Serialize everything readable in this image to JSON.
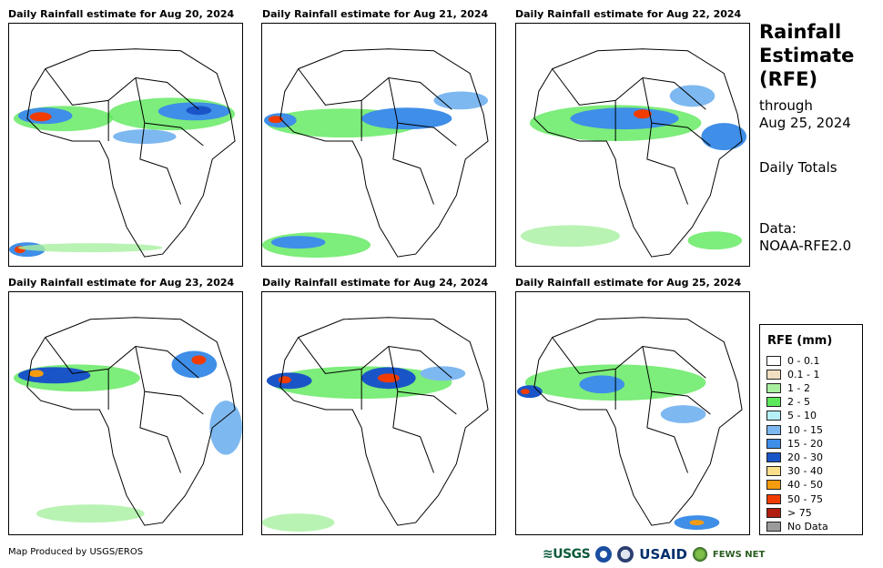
{
  "panels": [
    {
      "title": "Daily Rainfall estimate for Aug 20, 2024"
    },
    {
      "title": "Daily Rainfall estimate for Aug 21, 2024"
    },
    {
      "title": "Daily Rainfall estimate for Aug 22, 2024"
    },
    {
      "title": "Daily Rainfall estimate for Aug 23, 2024"
    },
    {
      "title": "Daily Rainfall estimate for Aug 24, 2024"
    },
    {
      "title": "Daily Rainfall estimate for Aug 25, 2024"
    }
  ],
  "side": {
    "title_line1": "Rainfall",
    "title_line2": "Estimate",
    "title_line3": "(RFE)",
    "through_label": "through",
    "through_date": "Aug 25, 2024",
    "totals": "Daily Totals",
    "data_label": "Data:",
    "data_source": "NOAA-RFE2.0"
  },
  "legend": {
    "title": "RFE (mm)",
    "items": [
      {
        "label": "0 - 0.1",
        "color": "#ffffff"
      },
      {
        "label": "0.1 - 1",
        "color": "#f0dfc0"
      },
      {
        "label": "1 - 2",
        "color": "#a8f0a0"
      },
      {
        "label": "2 - 5",
        "color": "#5ce85a"
      },
      {
        "label": "5 - 10",
        "color": "#b4f0f5"
      },
      {
        "label": "10 - 15",
        "color": "#7eb8f0"
      },
      {
        "label": "15 - 20",
        "color": "#3f8ee8"
      },
      {
        "label": "20 - 30",
        "color": "#1a55c8"
      },
      {
        "label": "30 - 40",
        "color": "#f8e08a"
      },
      {
        "label": "40 - 50",
        "color": "#f59b10"
      },
      {
        "label": "50 - 75",
        "color": "#f03c00"
      },
      {
        "label": "> 75",
        "color": "#b01c10"
      },
      {
        "label": "No Data",
        "color": "#9b9b9b"
      }
    ]
  },
  "footer": {
    "credit": "Map Produced by USGS/EROS",
    "logo_usgs": "≋USGS",
    "logo_usaid": "USAID",
    "logo_fews": "FEWS NET"
  }
}
